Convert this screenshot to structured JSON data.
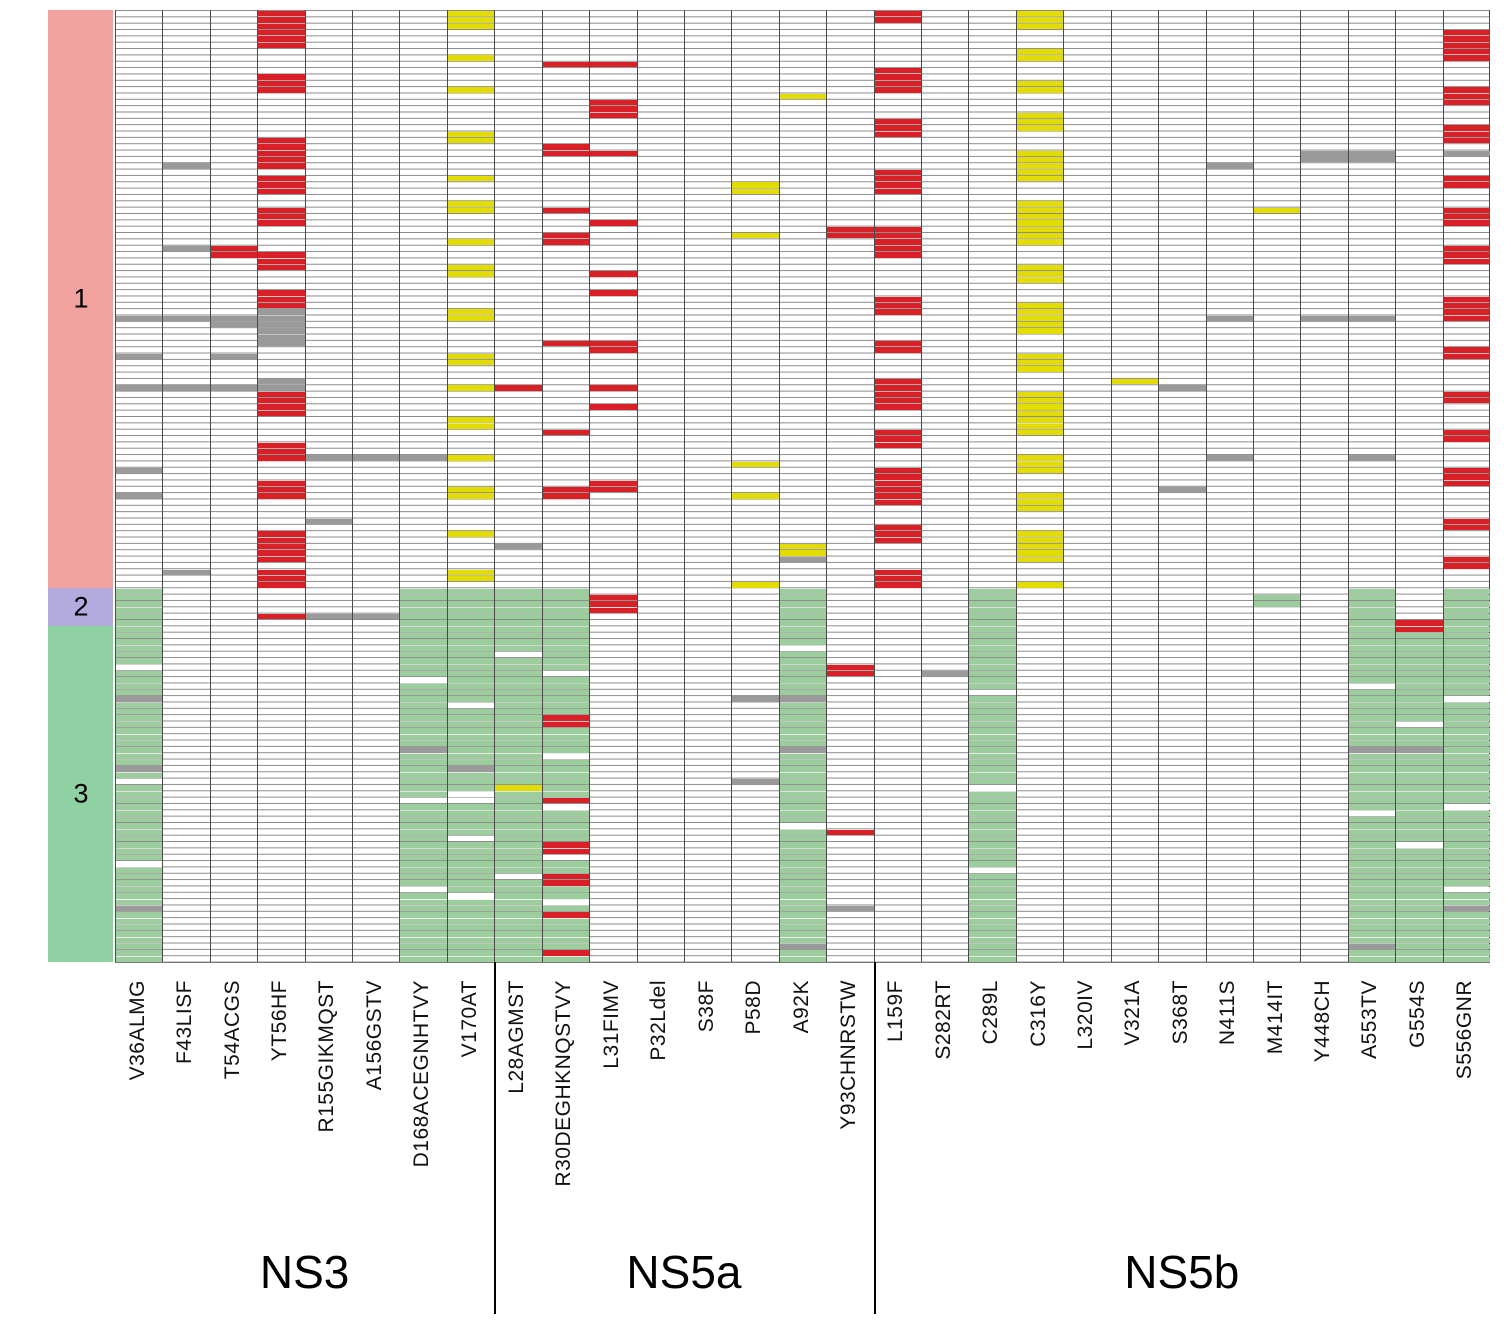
{
  "chart_data": {
    "type": "heatmap",
    "description": "Resistance-associated substitution heatmap: rows are virus samples grouped by genotype (1, 2, 3), columns are amino-acid positions grouped by gene (NS3, NS5a, NS5b). Cell colors mark substitutions.",
    "n_rows": 150,
    "row_groups": [
      {
        "label": "1",
        "rows": [
          0,
          90
        ],
        "color": "#f2a3a0"
      },
      {
        "label": "2",
        "rows": [
          91,
          96
        ],
        "color": "#b3abde"
      },
      {
        "label": "3",
        "rows": [
          97,
          149
        ],
        "color": "#90d1a3"
      }
    ],
    "gene_groups": [
      {
        "label": "NS3",
        "col_start": 0,
        "col_end": 7
      },
      {
        "label": "NS5a",
        "col_start": 8,
        "col_end": 15
      },
      {
        "label": "NS5b",
        "col_start": 16,
        "col_end": 28
      }
    ],
    "colors": {
      "red": "#d92027",
      "yellow": "#e3dc00",
      "gray": "#9a9a9a",
      "green": "#9bce9c",
      "white": "#ffffff"
    },
    "columns": [
      {
        "label": "V36ALMG",
        "gene": "NS3"
      },
      {
        "label": "F43LISF",
        "gene": "NS3"
      },
      {
        "label": "T54ACGS",
        "gene": "NS3"
      },
      {
        "label": "YT56HF",
        "gene": "NS3"
      },
      {
        "label": "R155GIKMQST",
        "gene": "NS3"
      },
      {
        "label": "A156GSTV",
        "gene": "NS3"
      },
      {
        "label": "D168ACEGNHTVY",
        "gene": "NS3"
      },
      {
        "label": "V170AT",
        "gene": "NS3"
      },
      {
        "label": "L28AGMST",
        "gene": "NS5a"
      },
      {
        "label": "R30DEGHKNQSTVY",
        "gene": "NS5a"
      },
      {
        "label": "L31FIMV",
        "gene": "NS5a"
      },
      {
        "label": "P32Ldel",
        "gene": "NS5a"
      },
      {
        "label": "S38F",
        "gene": "NS5a"
      },
      {
        "label": "P58D",
        "gene": "NS5a"
      },
      {
        "label": "A92K",
        "gene": "NS5a"
      },
      {
        "label": "Y93CHNRSTW",
        "gene": "NS5a"
      },
      {
        "label": "L159F",
        "gene": "NS5b"
      },
      {
        "label": "S282RT",
        "gene": "NS5b"
      },
      {
        "label": "C289L",
        "gene": "NS5b"
      },
      {
        "label": "C316Y",
        "gene": "NS5b"
      },
      {
        "label": "L320IV",
        "gene": "NS5b"
      },
      {
        "label": "V321A",
        "gene": "NS5b"
      },
      {
        "label": "S368T",
        "gene": "NS5b"
      },
      {
        "label": "N411S",
        "gene": "NS5b"
      },
      {
        "label": "M414IT",
        "gene": "NS5b"
      },
      {
        "label": "Y448CH",
        "gene": "NS5b"
      },
      {
        "label": "A553TV",
        "gene": "NS5b"
      },
      {
        "label": "G554S",
        "gene": "NS5b"
      },
      {
        "label": "S556GNR",
        "gene": "NS5b"
      }
    ],
    "marks": [
      {
        "col": 0,
        "color": "gray",
        "rows": [
          [
            48,
            48
          ],
          [
            54,
            54
          ],
          [
            59,
            59
          ],
          [
            72,
            72
          ],
          [
            76,
            76
          ]
        ]
      },
      {
        "col": 0,
        "color": "green",
        "rows": [
          [
            91,
            149
          ]
        ]
      },
      {
        "col": 0,
        "color": "white",
        "rows": [
          [
            103,
            103
          ],
          [
            121,
            121
          ],
          [
            134,
            134
          ]
        ]
      },
      {
        "col": 0,
        "color": "gray",
        "rows": [
          [
            108,
            108
          ],
          [
            119,
            119
          ],
          [
            141,
            141
          ]
        ]
      },
      {
        "col": 1,
        "color": "gray",
        "rows": [
          [
            24,
            24
          ],
          [
            37,
            37
          ],
          [
            48,
            48
          ],
          [
            59,
            59
          ],
          [
            88,
            88
          ]
        ]
      },
      {
        "col": 2,
        "color": "red",
        "rows": [
          [
            37,
            38
          ]
        ]
      },
      {
        "col": 2,
        "color": "gray",
        "rows": [
          [
            48,
            49
          ],
          [
            54,
            54
          ],
          [
            59,
            59
          ]
        ]
      },
      {
        "col": 3,
        "color": "red",
        "rows": [
          [
            0,
            5
          ],
          [
            10,
            12
          ],
          [
            20,
            24
          ],
          [
            26,
            28
          ],
          [
            31,
            33
          ],
          [
            38,
            40
          ],
          [
            44,
            46
          ],
          [
            60,
            63
          ],
          [
            68,
            70
          ],
          [
            74,
            76
          ],
          [
            82,
            86
          ],
          [
            88,
            90
          ],
          [
            95,
            95
          ]
        ]
      },
      {
        "col": 3,
        "color": "gray",
        "rows": [
          [
            47,
            52
          ],
          [
            58,
            59
          ]
        ]
      },
      {
        "col": 4,
        "color": "gray",
        "rows": [
          [
            70,
            70
          ],
          [
            80,
            80
          ],
          [
            95,
            95
          ]
        ]
      },
      {
        "col": 5,
        "color": "gray",
        "rows": [
          [
            70,
            70
          ],
          [
            95,
            95
          ]
        ]
      },
      {
        "col": 6,
        "color": "gray",
        "rows": [
          [
            70,
            70
          ]
        ]
      },
      {
        "col": 6,
        "color": "green",
        "rows": [
          [
            91,
            149
          ]
        ]
      },
      {
        "col": 6,
        "color": "white",
        "rows": [
          [
            105,
            105
          ],
          [
            124,
            124
          ],
          [
            138,
            138
          ]
        ]
      },
      {
        "col": 6,
        "color": "gray",
        "rows": [
          [
            116,
            116
          ]
        ]
      },
      {
        "col": 7,
        "color": "yellow",
        "rows": [
          [
            0,
            2
          ],
          [
            7,
            7
          ],
          [
            12,
            12
          ],
          [
            19,
            20
          ],
          [
            26,
            26
          ],
          [
            30,
            31
          ],
          [
            36,
            36
          ],
          [
            40,
            41
          ],
          [
            47,
            48
          ],
          [
            54,
            55
          ],
          [
            59,
            59
          ],
          [
            64,
            65
          ],
          [
            70,
            70
          ],
          [
            75,
            76
          ],
          [
            82,
            82
          ],
          [
            88,
            89
          ]
        ]
      },
      {
        "col": 7,
        "color": "green",
        "rows": [
          [
            91,
            149
          ]
        ]
      },
      {
        "col": 7,
        "color": "white",
        "rows": [
          [
            109,
            109
          ],
          [
            123,
            124
          ],
          [
            130,
            130
          ],
          [
            139,
            139
          ]
        ]
      },
      {
        "col": 7,
        "color": "gray",
        "rows": [
          [
            119,
            119
          ]
        ]
      },
      {
        "col": 8,
        "color": "red",
        "rows": [
          [
            59,
            59
          ]
        ]
      },
      {
        "col": 8,
        "color": "gray",
        "rows": [
          [
            84,
            84
          ]
        ]
      },
      {
        "col": 8,
        "color": "green",
        "rows": [
          [
            91,
            149
          ]
        ]
      },
      {
        "col": 8,
        "color": "white",
        "rows": [
          [
            101,
            101
          ],
          [
            136,
            136
          ]
        ]
      },
      {
        "col": 8,
        "color": "yellow",
        "rows": [
          [
            122,
            122
          ]
        ]
      },
      {
        "col": 9,
        "color": "red",
        "rows": [
          [
            8,
            8
          ],
          [
            21,
            22
          ],
          [
            31,
            31
          ],
          [
            35,
            36
          ],
          [
            52,
            52
          ],
          [
            66,
            66
          ],
          [
            75,
            76
          ]
        ]
      },
      {
        "col": 9,
        "color": "green",
        "rows": [
          [
            91,
            149
          ]
        ]
      },
      {
        "col": 9,
        "color": "white",
        "rows": [
          [
            104,
            104
          ],
          [
            117,
            117
          ],
          [
            125,
            125
          ],
          [
            133,
            133
          ],
          [
            140,
            140
          ]
        ]
      },
      {
        "col": 9,
        "color": "red",
        "rows": [
          [
            111,
            112
          ],
          [
            124,
            124
          ],
          [
            131,
            132
          ],
          [
            136,
            137
          ],
          [
            142,
            142
          ],
          [
            148,
            148
          ]
        ]
      },
      {
        "col": 10,
        "color": "red",
        "rows": [
          [
            8,
            8
          ],
          [
            14,
            16
          ],
          [
            22,
            22
          ],
          [
            33,
            33
          ],
          [
            41,
            41
          ],
          [
            44,
            44
          ],
          [
            52,
            53
          ],
          [
            59,
            59
          ],
          [
            62,
            62
          ],
          [
            74,
            75
          ],
          [
            92,
            94
          ]
        ]
      },
      {
        "col": 13,
        "color": "yellow",
        "rows": [
          [
            27,
            28
          ],
          [
            35,
            35
          ],
          [
            71,
            71
          ],
          [
            76,
            76
          ],
          [
            90,
            90
          ]
        ]
      },
      {
        "col": 13,
        "color": "gray",
        "rows": [
          [
            108,
            108
          ],
          [
            121,
            121
          ]
        ]
      },
      {
        "col": 14,
        "color": "yellow",
        "rows": [
          [
            13,
            13
          ],
          [
            84,
            85
          ]
        ]
      },
      {
        "col": 14,
        "color": "gray",
        "rows": [
          [
            86,
            86
          ]
        ]
      },
      {
        "col": 14,
        "color": "green",
        "rows": [
          [
            91,
            149
          ]
        ]
      },
      {
        "col": 14,
        "color": "white",
        "rows": [
          [
            100,
            100
          ],
          [
            128,
            128
          ]
        ]
      },
      {
        "col": 14,
        "color": "gray",
        "rows": [
          [
            108,
            108
          ],
          [
            116,
            116
          ],
          [
            147,
            147
          ]
        ]
      },
      {
        "col": 15,
        "color": "red",
        "rows": [
          [
            34,
            35
          ],
          [
            103,
            104
          ],
          [
            129,
            129
          ]
        ]
      },
      {
        "col": 15,
        "color": "gray",
        "rows": [
          [
            141,
            141
          ]
        ]
      },
      {
        "col": 16,
        "color": "red",
        "rows": [
          [
            0,
            1
          ],
          [
            9,
            12
          ],
          [
            17,
            19
          ],
          [
            25,
            28
          ],
          [
            34,
            38
          ],
          [
            45,
            47
          ],
          [
            52,
            53
          ],
          [
            58,
            62
          ],
          [
            66,
            68
          ],
          [
            72,
            77
          ],
          [
            81,
            83
          ],
          [
            88,
            90
          ]
        ]
      },
      {
        "col": 17,
        "color": "gray",
        "rows": [
          [
            104,
            104
          ]
        ]
      },
      {
        "col": 18,
        "color": "green",
        "rows": [
          [
            91,
            149
          ]
        ]
      },
      {
        "col": 18,
        "color": "white",
        "rows": [
          [
            107,
            107
          ],
          [
            122,
            122
          ],
          [
            135,
            135
          ]
        ]
      },
      {
        "col": 19,
        "color": "yellow",
        "rows": [
          [
            0,
            2
          ],
          [
            6,
            7
          ],
          [
            11,
            12
          ],
          [
            16,
            18
          ],
          [
            22,
            26
          ],
          [
            30,
            36
          ],
          [
            40,
            42
          ],
          [
            46,
            50
          ],
          [
            54,
            56
          ],
          [
            60,
            66
          ],
          [
            70,
            72
          ],
          [
            76,
            78
          ],
          [
            82,
            86
          ],
          [
            90,
            90
          ]
        ]
      },
      {
        "col": 21,
        "color": "yellow",
        "rows": [
          [
            58,
            58
          ]
        ]
      },
      {
        "col": 22,
        "color": "gray",
        "rows": [
          [
            59,
            59
          ],
          [
            75,
            75
          ]
        ]
      },
      {
        "col": 23,
        "color": "gray",
        "rows": [
          [
            24,
            24
          ],
          [
            48,
            48
          ],
          [
            70,
            70
          ]
        ]
      },
      {
        "col": 24,
        "color": "yellow",
        "rows": [
          [
            31,
            31
          ]
        ]
      },
      {
        "col": 24,
        "color": "green",
        "rows": [
          [
            92,
            93
          ]
        ]
      },
      {
        "col": 25,
        "color": "gray",
        "rows": [
          [
            22,
            23
          ],
          [
            48,
            48
          ]
        ]
      },
      {
        "col": 26,
        "color": "gray",
        "rows": [
          [
            22,
            23
          ],
          [
            48,
            48
          ],
          [
            70,
            70
          ]
        ]
      },
      {
        "col": 26,
        "color": "green",
        "rows": [
          [
            91,
            149
          ]
        ]
      },
      {
        "col": 26,
        "color": "white",
        "rows": [
          [
            106,
            106
          ],
          [
            126,
            126
          ]
        ]
      },
      {
        "col": 26,
        "color": "gray",
        "rows": [
          [
            116,
            116
          ],
          [
            147,
            147
          ]
        ]
      },
      {
        "col": 27,
        "color": "red",
        "rows": [
          [
            96,
            97
          ]
        ]
      },
      {
        "col": 27,
        "color": "green",
        "rows": [
          [
            98,
            149
          ]
        ]
      },
      {
        "col": 27,
        "color": "white",
        "rows": [
          [
            112,
            112
          ],
          [
            131,
            131
          ]
        ]
      },
      {
        "col": 27,
        "color": "gray",
        "rows": [
          [
            116,
            116
          ]
        ]
      },
      {
        "col": 28,
        "color": "red",
        "rows": [
          [
            3,
            7
          ],
          [
            12,
            14
          ],
          [
            18,
            20
          ],
          [
            26,
            27
          ],
          [
            31,
            33
          ],
          [
            37,
            39
          ],
          [
            45,
            48
          ],
          [
            53,
            54
          ],
          [
            60,
            61
          ],
          [
            66,
            67
          ],
          [
            72,
            74
          ],
          [
            80,
            81
          ],
          [
            86,
            87
          ]
        ]
      },
      {
        "col": 28,
        "color": "gray",
        "rows": [
          [
            22,
            22
          ]
        ]
      },
      {
        "col": 28,
        "color": "green",
        "rows": [
          [
            91,
            149
          ]
        ]
      },
      {
        "col": 28,
        "color": "white",
        "rows": [
          [
            108,
            108
          ],
          [
            125,
            125
          ],
          [
            138,
            138
          ]
        ]
      },
      {
        "col": 28,
        "color": "gray",
        "rows": [
          [
            141,
            141
          ]
        ]
      }
    ]
  }
}
